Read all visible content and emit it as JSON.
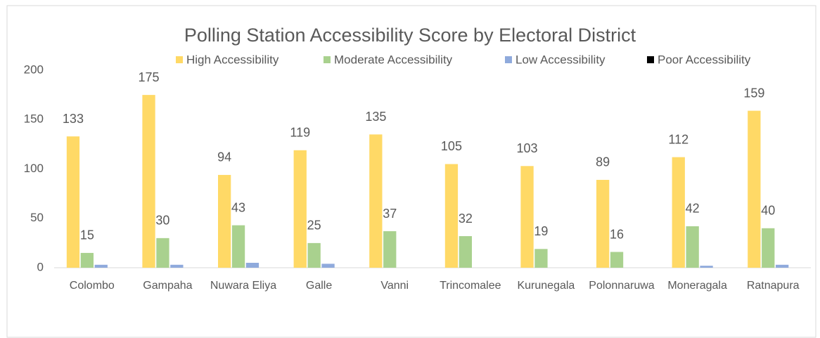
{
  "chart_data": {
    "type": "bar",
    "title": "Polling Station Accessibility Score by Electoral District",
    "categories": [
      "Colombo",
      "Gampaha",
      "Nuwara Eliya",
      "Galle",
      "Vanni",
      "Trincomalee",
      "Kurunegala",
      "Polonnaruwa",
      "Moneragala",
      "Ratnapura"
    ],
    "series": [
      {
        "name": "High Accessibility",
        "color": "#ffd966",
        "show_labels": true,
        "values": [
          133,
          175,
          94,
          119,
          135,
          105,
          103,
          89,
          112,
          159
        ]
      },
      {
        "name": "Moderate Accessibility",
        "color": "#a9d18e",
        "show_labels": true,
        "values": [
          15,
          30,
          43,
          25,
          37,
          32,
          19,
          16,
          42,
          40
        ]
      },
      {
        "name": "Low Accessibility",
        "color": "#8faadc",
        "show_labels": false,
        "values": [
          3,
          3,
          5,
          4,
          0,
          0,
          0,
          0,
          2,
          3
        ]
      },
      {
        "name": "Poor Accessibility",
        "color": "#000000",
        "show_labels": false,
        "values": [
          0,
          0,
          0,
          0,
          0,
          0,
          0,
          0,
          0,
          0
        ]
      }
    ],
    "ylim": [
      0,
      200
    ],
    "yticks": [
      0,
      50,
      100,
      150,
      200
    ],
    "grid": false,
    "legend": "top"
  }
}
